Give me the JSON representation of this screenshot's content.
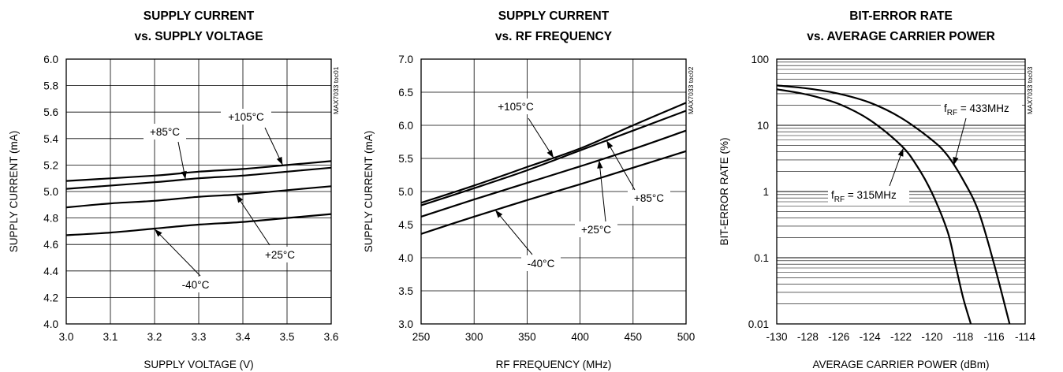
{
  "chart_data": [
    {
      "type": "line",
      "title_line1": "SUPPLY CURRENT",
      "title_line2": "vs. SUPPLY VOLTAGE",
      "xlabel": "SUPPLY VOLTAGE (V)",
      "ylabel": "SUPPLY CURRENT (mA)",
      "code": "MAX7033 toc01",
      "xlim": [
        3.0,
        3.6
      ],
      "ylim": [
        4.0,
        6.0
      ],
      "xticks": [
        "3.0",
        "3.1",
        "3.2",
        "3.3",
        "3.4",
        "3.5",
        "3.6"
      ],
      "yticks": [
        "4.0",
        "4.2",
        "4.4",
        "4.6",
        "4.8",
        "5.0",
        "5.2",
        "5.4",
        "5.6",
        "5.8",
        "6.0"
      ],
      "grid": true,
      "series": [
        {
          "name": "+105°C",
          "x": [
            3.0,
            3.2,
            3.3,
            3.4,
            3.5,
            3.6
          ],
          "y": [
            5.08,
            5.12,
            5.15,
            5.17,
            5.2,
            5.23
          ]
        },
        {
          "name": "+85°C",
          "x": [
            3.0,
            3.2,
            3.3,
            3.4,
            3.5,
            3.6
          ],
          "y": [
            5.02,
            5.07,
            5.1,
            5.12,
            5.15,
            5.18
          ]
        },
        {
          "name": "+25°C",
          "x": [
            3.0,
            3.1,
            3.2,
            3.3,
            3.4,
            3.5,
            3.6
          ],
          "y": [
            4.88,
            4.91,
            4.93,
            4.96,
            4.98,
            5.01,
            5.04
          ]
        },
        {
          "name": "-40°C",
          "x": [
            3.0,
            3.1,
            3.2,
            3.3,
            3.4,
            3.5,
            3.6
          ],
          "y": [
            4.67,
            4.69,
            4.72,
            4.75,
            4.77,
            4.8,
            4.83
          ]
        }
      ]
    },
    {
      "type": "line",
      "title_line1": "SUPPLY CURRENT",
      "title_line2": "vs. RF FREQUENCY",
      "xlabel": "RF FREQUENCY (MHz)",
      "ylabel": "SUPPLY CURRENT (mA)",
      "code": "MAX7033 toc02",
      "xlim": [
        250,
        500
      ],
      "ylim": [
        3.0,
        7.0
      ],
      "xticks": [
        "250",
        "300",
        "350",
        "400",
        "450",
        "500"
      ],
      "yticks": [
        "3.0",
        "3.5",
        "4.0",
        "4.5",
        "5.0",
        "5.5",
        "6.0",
        "6.5",
        "7.0"
      ],
      "grid": true,
      "series": [
        {
          "name": "+105°C",
          "x": [
            250,
            300,
            350,
            400,
            450,
            500
          ],
          "y": [
            4.83,
            5.09,
            5.37,
            5.65,
            6.0,
            6.34
          ]
        },
        {
          "name": "+85°C",
          "x": [
            250,
            300,
            350,
            400,
            450,
            500
          ],
          "y": [
            4.79,
            5.05,
            5.32,
            5.62,
            5.92,
            6.22
          ]
        },
        {
          "name": "+25°C",
          "x": [
            250,
            300,
            350,
            400,
            450,
            500
          ],
          "y": [
            4.62,
            4.88,
            5.13,
            5.38,
            5.64,
            5.92
          ]
        },
        {
          "name": "-40°C",
          "x": [
            250,
            300,
            350,
            400,
            450,
            500
          ],
          "y": [
            4.36,
            4.62,
            4.87,
            5.11,
            5.36,
            5.61
          ]
        }
      ]
    },
    {
      "type": "line",
      "title_line1": "BIT-ERROR RATE",
      "title_line2": "vs. AVERAGE CARRIER POWER",
      "xlabel": "AVERAGE CARRIER POWER (dBm)",
      "ylabel": "BIT-ERROR RATE (%)",
      "code": "MAX7033 toc03",
      "xlim": [
        -130,
        -114
      ],
      "ylim": [
        0.01,
        100
      ],
      "yscale": "log",
      "xticks": [
        "-130",
        "-128",
        "-126",
        "-124",
        "-122",
        "-120",
        "-118",
        "-116",
        "-114"
      ],
      "yticks": [
        "0.01",
        "0.1",
        "1",
        "10",
        "100"
      ],
      "grid": true,
      "series": [
        {
          "label_main": "f",
          "label_sub": "RF",
          "label_rest": " = 433MHz",
          "x": [
            -130,
            -128,
            -126,
            -124,
            -122,
            -120,
            -119,
            -118,
            -117,
            -116,
            -115
          ],
          "y": [
            40,
            36,
            30,
            22,
            13,
            6,
            3.5,
            1.5,
            0.5,
            0.08,
            0.01
          ]
        },
        {
          "label_main": "f",
          "label_sub": "RF",
          "label_rest": " = 315MHz",
          "x": [
            -130,
            -128,
            -126,
            -124,
            -122,
            -121,
            -120,
            -119,
            -118.5,
            -118,
            -117.5
          ],
          "y": [
            35,
            29,
            21,
            12,
            5,
            2.5,
            0.95,
            0.25,
            0.08,
            0.025,
            0.01
          ]
        }
      ]
    }
  ]
}
